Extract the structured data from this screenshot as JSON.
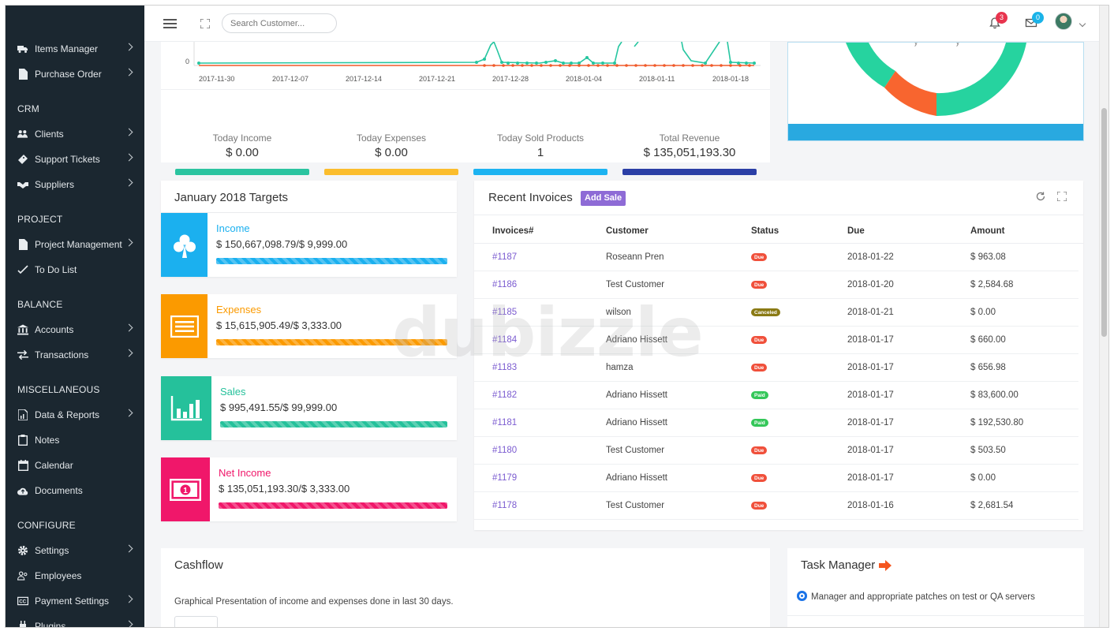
{
  "sidebar": {
    "items": [
      {
        "label": "Items Manager",
        "icon": "truck-icon",
        "chevron": true
      },
      {
        "label": "Purchase Order",
        "icon": "file-icon",
        "chevron": true
      },
      {
        "label": "Clients",
        "icon": "users-icon",
        "chevron": true
      },
      {
        "label": "Support Tickets",
        "icon": "ticket-icon",
        "chevron": true
      },
      {
        "label": "Suppliers",
        "icon": "handshake-icon",
        "chevron": true
      },
      {
        "label": "Project Management",
        "icon": "file-icon",
        "chevron": true
      },
      {
        "label": "To Do List",
        "icon": "check-icon",
        "chevron": false
      },
      {
        "label": "Accounts",
        "icon": "bank-icon",
        "chevron": true
      },
      {
        "label": "Transactions",
        "icon": "exchange-icon",
        "chevron": true
      },
      {
        "label": "Data & Reports",
        "icon": "report-icon",
        "chevron": true
      },
      {
        "label": "Notes",
        "icon": "clipboard-icon",
        "chevron": false
      },
      {
        "label": "Calendar",
        "icon": "calendar-icon",
        "chevron": false
      },
      {
        "label": "Documents",
        "icon": "cloud-upload-icon",
        "chevron": false
      },
      {
        "label": "Settings",
        "icon": "gear-icon",
        "chevron": true
      },
      {
        "label": "Employees",
        "icon": "employees-icon",
        "chevron": false
      },
      {
        "label": "Payment Settings",
        "icon": "cc-icon",
        "chevron": true
      },
      {
        "label": "Plugins",
        "icon": "plug-icon",
        "chevron": true
      }
    ],
    "headings": {
      "crm": "CRM",
      "project": "PROJECT",
      "balance": "BALANCE",
      "misc": "MISCELLANEOUS",
      "configure": "CONFIGURE"
    }
  },
  "topbar": {
    "search_placeholder": "Search Customer...",
    "notifications_count": "3",
    "messages_count": "0"
  },
  "chart": {
    "y_zero": "0",
    "x_ticks": [
      "2017-11-30",
      "2017-12-07",
      "2017-12-14",
      "2017-12-21",
      "2017-12-28",
      "2018-01-04",
      "2018-01-11",
      "2018-01-18"
    ]
  },
  "stats": [
    {
      "label": "Today Income",
      "value": "$ 0.00",
      "color": "#2bc4a0"
    },
    {
      "label": "Today Expenses",
      "value": "$ 0.00",
      "color": "#fbbd2d"
    },
    {
      "label": "Today Sold Products",
      "value": "1",
      "color": "#1cb3f1"
    },
    {
      "label": "Total Revenue",
      "value": "$ 135,051,193.30",
      "color": "#2b3fa6"
    }
  ],
  "targets": {
    "title": "January 2018 Targets",
    "items": [
      {
        "name": "Income",
        "value": "$ 150,667,098.79/$ 9,999.00",
        "color": "#1bb0ef",
        "icon": "club-icon"
      },
      {
        "name": "Expenses",
        "value": "$ 15,615,905.49/$ 3,333.00",
        "color": "#fb9a00",
        "icon": "list-card-icon"
      },
      {
        "name": "Sales",
        "value": "$ 995,491.55/$ 99,999.00",
        "color": "#25c19b",
        "icon": "bar-chart-icon"
      },
      {
        "name": "Net Income",
        "value": "$ 135,051,193.30/$ 3,333.00",
        "color": "#f0176a",
        "icon": "money-icon"
      }
    ]
  },
  "invoices": {
    "title": "Recent Invoices",
    "add_label": "Add Sale",
    "columns": [
      "Invoices#",
      "Customer",
      "Status",
      "Due",
      "Amount"
    ],
    "rows": [
      {
        "id": "#1187",
        "customer": "Roseann Pren",
        "status": "Due",
        "due": "2018-01-22",
        "amount": "$ 963.08"
      },
      {
        "id": "#1186",
        "customer": "Test Customer",
        "status": "Due",
        "due": "2018-01-20",
        "amount": "$ 2,584.68"
      },
      {
        "id": "#1185",
        "customer": "wilson",
        "status": "Canceled",
        "due": "2018-01-21",
        "amount": "$ 0.00"
      },
      {
        "id": "#1184",
        "customer": "Adriano Hissett",
        "status": "Due",
        "due": "2018-01-17",
        "amount": "$ 660.00"
      },
      {
        "id": "#1183",
        "customer": "hamza",
        "status": "Due",
        "due": "2018-01-17",
        "amount": "$ 656.98"
      },
      {
        "id": "#1182",
        "customer": "Adriano Hissett",
        "status": "Paid",
        "due": "2018-01-17",
        "amount": "$ 83,600.00"
      },
      {
        "id": "#1181",
        "customer": "Adriano Hissett",
        "status": "Paid",
        "due": "2018-01-17",
        "amount": "$ 192,530.80"
      },
      {
        "id": "#1180",
        "customer": "Test Customer",
        "status": "Due",
        "due": "2018-01-17",
        "amount": "$ 503.50"
      },
      {
        "id": "#1179",
        "customer": "Adriano Hissett",
        "status": "Due",
        "due": "2018-01-17",
        "amount": "$ 0.00"
      },
      {
        "id": "#1178",
        "customer": "Test Customer",
        "status": "Due",
        "due": "2018-01-16",
        "amount": "$ 2,681.54"
      }
    ],
    "status_colors": {
      "Due": "#f0503b",
      "Paid": "#34c759",
      "Canceled": "#8a7a14"
    }
  },
  "cashflow": {
    "title": "Cashflow",
    "description": "Graphical Presentation of income and expenses done in last 30 days."
  },
  "tasks": {
    "title": "Task Manager",
    "items": [
      "Manager and appropriate patches on test or QA servers"
    ]
  },
  "watermark": "dubizzle"
}
